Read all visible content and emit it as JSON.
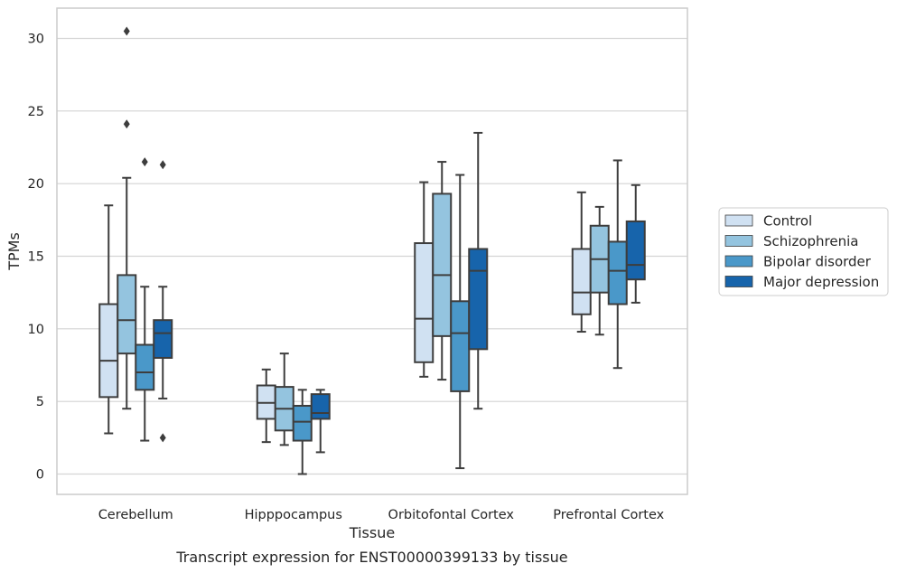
{
  "chart_data": {
    "type": "boxplot",
    "title": "",
    "caption": "Transcript expression for ENST00000399133 by tissue",
    "xlabel": "Tissue",
    "ylabel": "TPMs",
    "ylim": [
      -1.5,
      32
    ],
    "yticks": [
      0,
      5,
      10,
      15,
      20,
      25,
      30
    ],
    "grid": true,
    "legend_position": "right",
    "categories": [
      "Cerebellum",
      "Hipppocampus",
      "Orbitofontal Cortex",
      "Prefrontal Cortex"
    ],
    "series": [
      {
        "name": "Control",
        "color": "#d0e1f2",
        "boxes": [
          {
            "whisker_low": 2.8,
            "q1": 5.3,
            "median": 7.8,
            "q3": 11.7,
            "whisker_high": 18.5,
            "outliers": []
          },
          {
            "whisker_low": 2.2,
            "q1": 3.8,
            "median": 4.9,
            "q3": 6.1,
            "whisker_high": 7.2,
            "outliers": []
          },
          {
            "whisker_low": 6.7,
            "q1": 7.7,
            "median": 10.7,
            "q3": 15.9,
            "whisker_high": 20.1,
            "outliers": []
          },
          {
            "whisker_low": 9.8,
            "q1": 11.0,
            "median": 12.5,
            "q3": 15.5,
            "whisker_high": 19.4,
            "outliers": []
          }
        ]
      },
      {
        "name": "Schizophrenia",
        "color": "#94c4df",
        "boxes": [
          {
            "whisker_low": 4.5,
            "q1": 8.3,
            "median": 10.6,
            "q3": 13.7,
            "whisker_high": 20.4,
            "outliers": [
              24.1,
              30.5
            ]
          },
          {
            "whisker_low": 2.0,
            "q1": 3.0,
            "median": 4.5,
            "q3": 6.0,
            "whisker_high": 8.3,
            "outliers": []
          },
          {
            "whisker_low": 6.5,
            "q1": 9.5,
            "median": 13.7,
            "q3": 19.3,
            "whisker_high": 21.5,
            "outliers": []
          },
          {
            "whisker_low": 9.6,
            "q1": 12.5,
            "median": 14.8,
            "q3": 17.1,
            "whisker_high": 18.4,
            "outliers": []
          }
        ]
      },
      {
        "name": "Bipolar disorder",
        "color": "#4a98c9",
        "boxes": [
          {
            "whisker_low": 2.3,
            "q1": 5.8,
            "median": 7.0,
            "q3": 8.9,
            "whisker_high": 12.9,
            "outliers": [
              21.5
            ]
          },
          {
            "whisker_low": 0.0,
            "q1": 2.3,
            "median": 3.6,
            "q3": 4.7,
            "whisker_high": 5.8,
            "outliers": []
          },
          {
            "whisker_low": 0.4,
            "q1": 5.7,
            "median": 9.7,
            "q3": 11.9,
            "whisker_high": 20.6,
            "outliers": []
          },
          {
            "whisker_low": 7.3,
            "q1": 11.7,
            "median": 14.0,
            "q3": 16.0,
            "whisker_high": 21.6,
            "outliers": []
          }
        ]
      },
      {
        "name": "Major depression",
        "color": "#1764ab",
        "boxes": [
          {
            "whisker_low": 5.2,
            "q1": 8.0,
            "median": 9.7,
            "q3": 10.6,
            "whisker_high": 12.9,
            "outliers": [
              2.5,
              21.3
            ]
          },
          {
            "whisker_low": 1.5,
            "q1": 3.8,
            "median": 4.2,
            "q3": 5.5,
            "whisker_high": 5.8,
            "outliers": []
          },
          {
            "whisker_low": 4.5,
            "q1": 8.6,
            "median": 14.0,
            "q3": 15.5,
            "whisker_high": 23.5,
            "outliers": []
          },
          {
            "whisker_low": 11.8,
            "q1": 13.4,
            "median": 14.4,
            "q3": 17.4,
            "whisker_high": 19.9,
            "outliers": []
          }
        ]
      }
    ]
  }
}
